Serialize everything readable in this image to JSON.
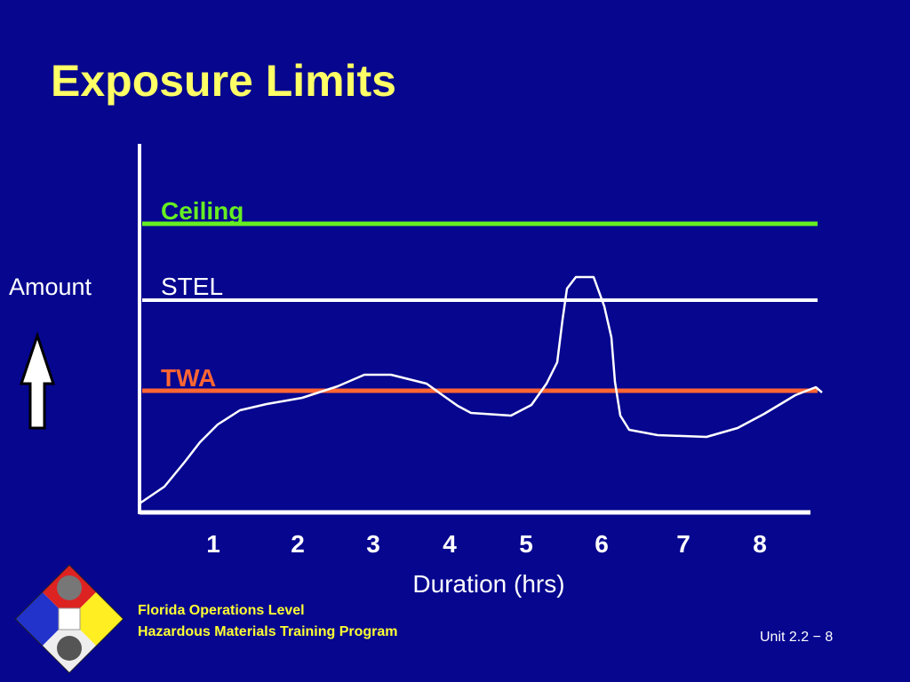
{
  "title": "Exposure Limits",
  "diagram": {
    "y_label": "Amount",
    "levels": [
      {
        "label": "Ceiling"
      },
      {
        "label": "STEL"
      },
      {
        "label": "TWA"
      }
    ],
    "x_labels": [
      "1",
      "2",
      "3",
      "4",
      "5",
      "6",
      "7",
      "8"
    ],
    "x_title": "Duration (hrs)"
  },
  "footer": {
    "program": [
      "Florida Operations Level",
      "Hazardous Materials Training Program"
    ],
    "slide": "Unit 2.2 − 8"
  }
}
